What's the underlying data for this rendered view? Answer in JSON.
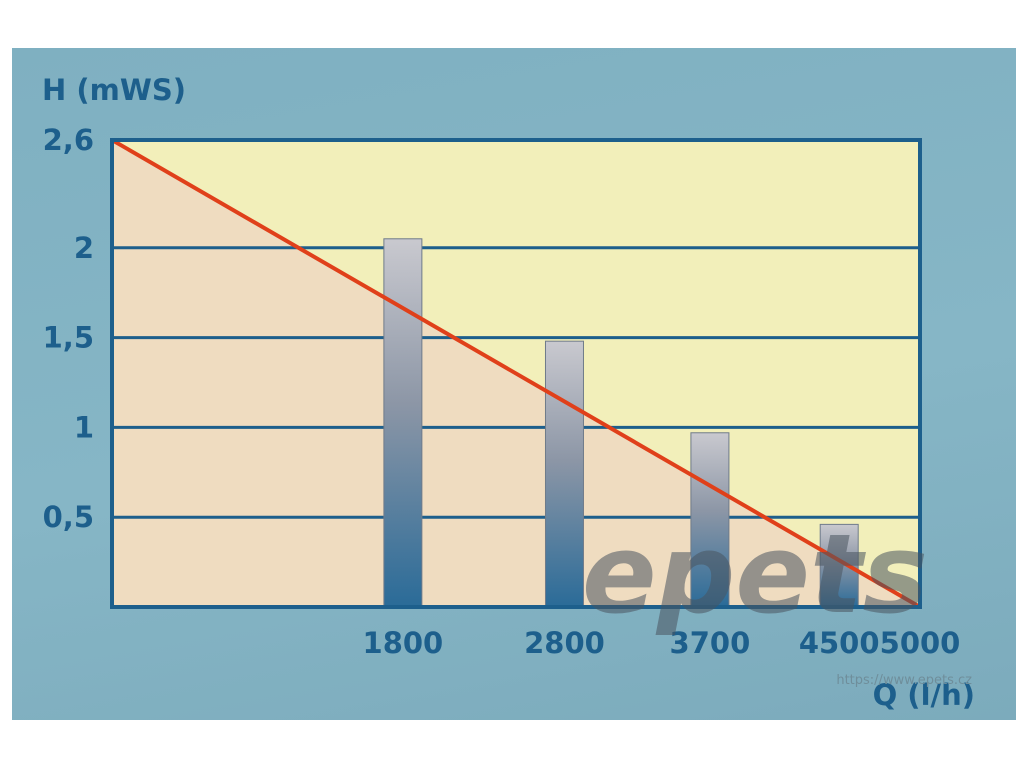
{
  "chart_data": {
    "type": "bar",
    "ylabel": "H (mWS)",
    "xlabel": "Q (l/h)",
    "ylim": [
      0,
      2.6
    ],
    "xlim": [
      0,
      5000
    ],
    "y_ticks": [
      {
        "value": 0.5,
        "label": "0,5"
      },
      {
        "value": 1,
        "label": "1"
      },
      {
        "value": 1.5,
        "label": "1,5"
      },
      {
        "value": 2,
        "label": "2"
      },
      {
        "value": 2.6,
        "label": "2,6"
      }
    ],
    "x_ticks": [
      {
        "value": 1800,
        "label": "1800"
      },
      {
        "value": 2800,
        "label": "2800"
      },
      {
        "value": 3700,
        "label": "3700"
      },
      {
        "value": 4500,
        "label": "4500"
      },
      {
        "value": 5000,
        "label": "5000"
      }
    ],
    "bars": [
      {
        "x": 1800,
        "value": 2.05
      },
      {
        "x": 2800,
        "value": 1.48
      },
      {
        "x": 3700,
        "value": 0.97
      },
      {
        "x": 4500,
        "value": 0.46
      }
    ],
    "line": {
      "points": [
        [
          0,
          2.6
        ],
        [
          5000,
          0
        ]
      ],
      "color": "#e0401a"
    },
    "grid": true,
    "colors": {
      "frame": "#1d5f8c",
      "upper_fill": "#f2efba",
      "lower_fill": "#efdcc0",
      "bar_top": "#c9c9cf",
      "bar_bottom": "#2a6b98"
    }
  },
  "watermark": {
    "logo": "epets",
    "url": "https://www.epets.cz"
  }
}
